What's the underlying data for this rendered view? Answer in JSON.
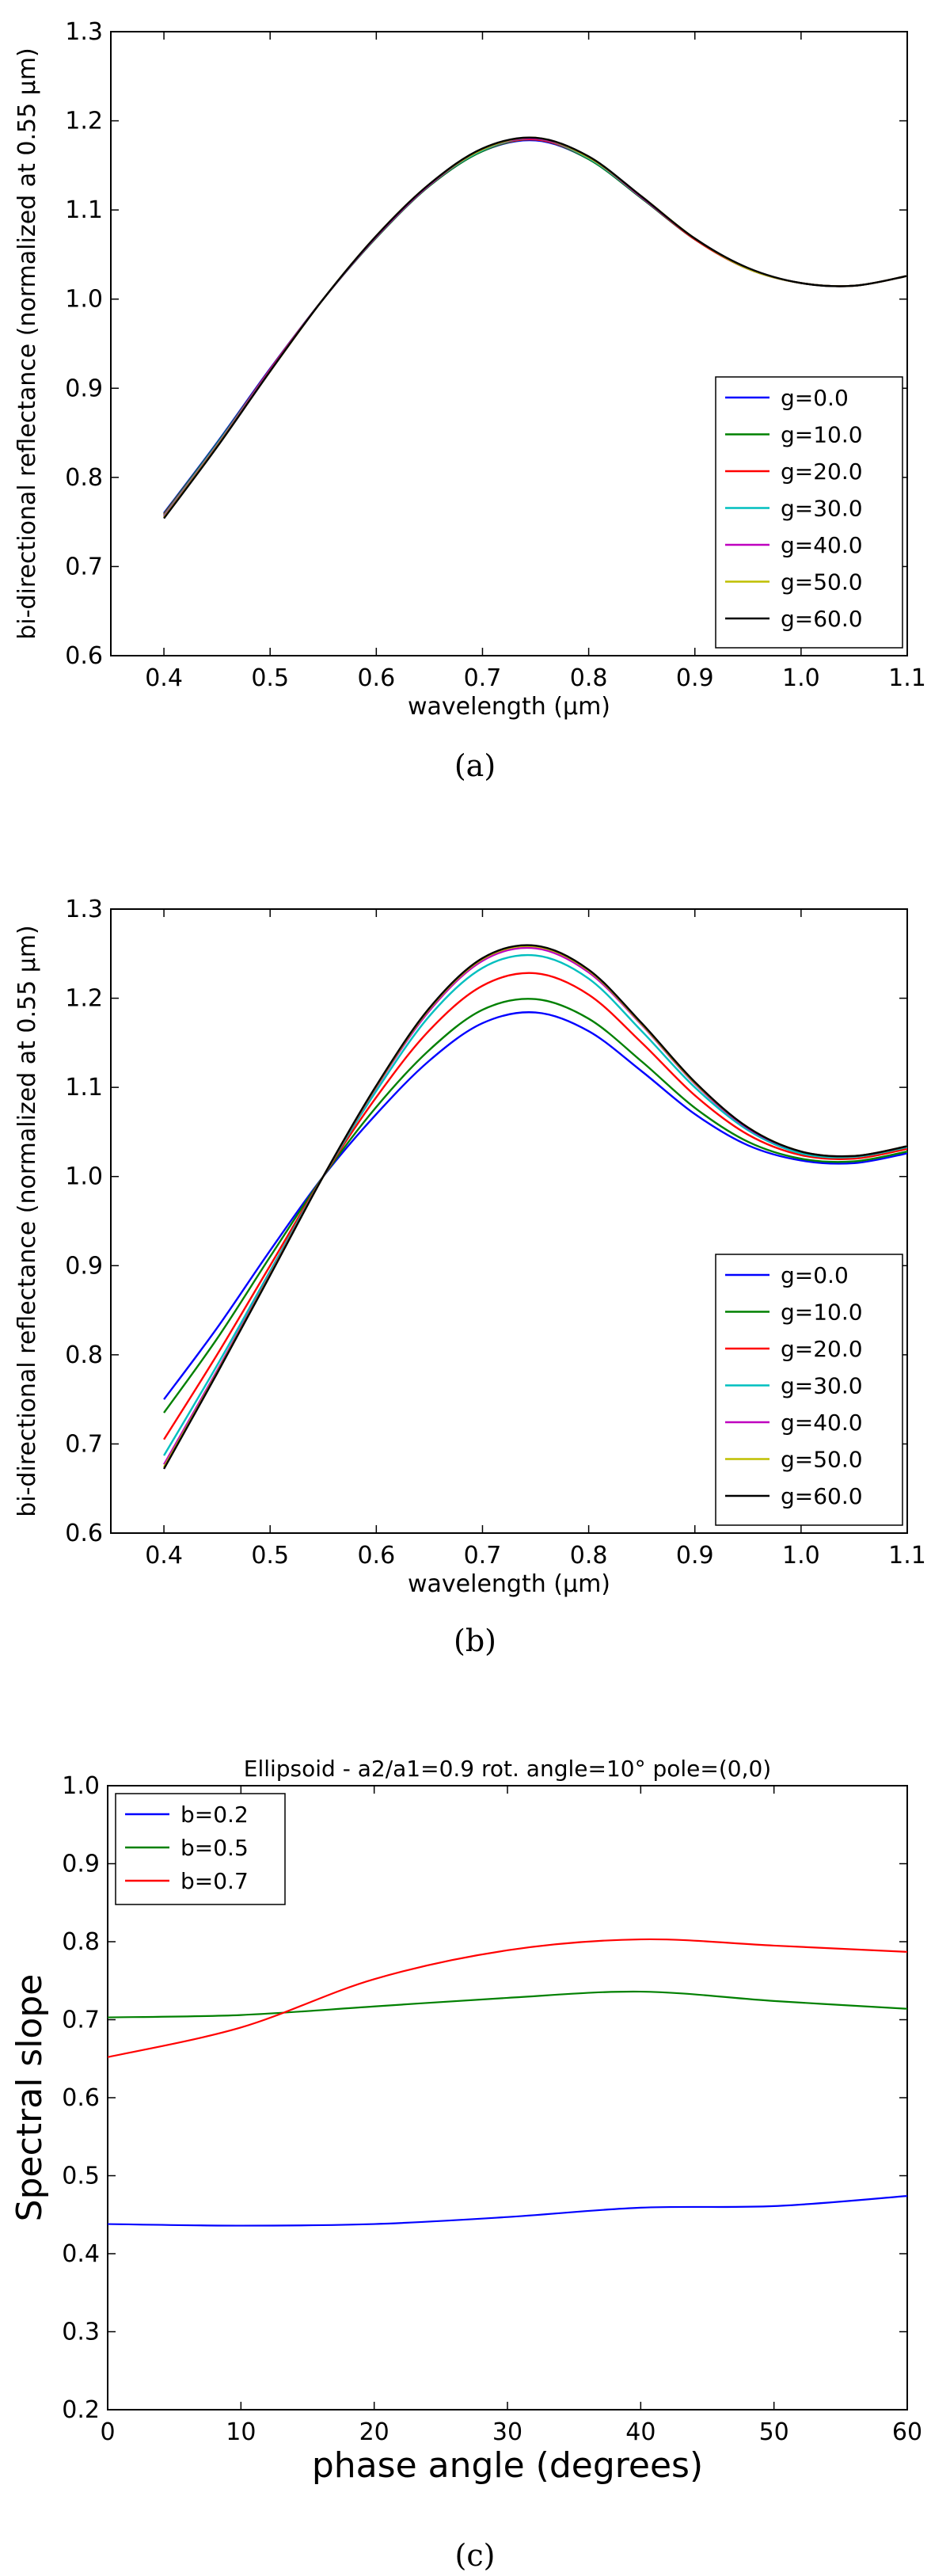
{
  "chart_data": [
    {
      "type": "line",
      "caption": "(a)",
      "xlabel": "wavelength (μm)",
      "ylabel": "bi-directional reflectance (normalized at 0.55 μm)",
      "xlim": [
        0.35,
        1.1
      ],
      "ylim": [
        0.6,
        1.3
      ],
      "xticks": [
        "0.4",
        "0.5",
        "0.6",
        "0.7",
        "0.8",
        "0.9",
        "1.0",
        "1.1"
      ],
      "yticks": [
        "0.6",
        "0.7",
        "0.8",
        "0.9",
        "1.0",
        "1.1",
        "1.2",
        "1.3"
      ],
      "legend_position": "lower-right",
      "x": [
        0.4,
        0.45,
        0.5,
        0.55,
        0.6,
        0.65,
        0.7,
        0.75,
        0.8,
        0.85,
        0.9,
        0.95,
        1.0,
        1.05,
        1.1
      ],
      "series": [
        {
          "name": "g=0.0",
          "color": "#0000ff",
          "values": [
            0.76,
            0.839,
            0.922,
            1.0,
            1.069,
            1.127,
            1.166,
            1.178,
            1.157,
            1.113,
            1.067,
            1.034,
            1.018,
            1.015,
            1.026
          ]
        },
        {
          "name": "g=10.0",
          "color": "#008000",
          "values": [
            0.759,
            0.838,
            0.921,
            1.0,
            1.069,
            1.127,
            1.166,
            1.179,
            1.157,
            1.113,
            1.067,
            1.034,
            1.018,
            1.015,
            1.026
          ]
        },
        {
          "name": "g=20.0",
          "color": "#ff0000",
          "values": [
            0.758,
            0.837,
            0.921,
            1.0,
            1.07,
            1.128,
            1.167,
            1.179,
            1.158,
            1.114,
            1.067,
            1.034,
            1.018,
            1.015,
            1.026
          ]
        },
        {
          "name": "g=30.0",
          "color": "#00bfbf",
          "values": [
            0.757,
            0.837,
            0.92,
            1.0,
            1.07,
            1.128,
            1.167,
            1.18,
            1.158,
            1.114,
            1.068,
            1.034,
            1.018,
            1.015,
            1.026
          ]
        },
        {
          "name": "g=40.0",
          "color": "#bf00bf",
          "values": [
            0.756,
            0.836,
            0.92,
            1.0,
            1.07,
            1.128,
            1.168,
            1.18,
            1.159,
            1.114,
            1.068,
            1.034,
            1.018,
            1.015,
            1.026
          ]
        },
        {
          "name": "g=50.0",
          "color": "#bfbf00",
          "values": [
            0.755,
            0.835,
            0.919,
            1.0,
            1.071,
            1.129,
            1.168,
            1.181,
            1.159,
            1.115,
            1.068,
            1.034,
            1.018,
            1.015,
            1.026
          ]
        },
        {
          "name": "g=60.0",
          "color": "#000000",
          "values": [
            0.754,
            0.834,
            0.919,
            1.0,
            1.071,
            1.129,
            1.169,
            1.181,
            1.16,
            1.115,
            1.068,
            1.035,
            1.018,
            1.015,
            1.026
          ]
        }
      ]
    },
    {
      "type": "line",
      "caption": "(b)",
      "xlabel": "wavelength (μm)",
      "ylabel": "bi-directional reflectance (normalized at 0.55 μm)",
      "xlim": [
        0.35,
        1.1
      ],
      "ylim": [
        0.6,
        1.3
      ],
      "xticks": [
        "0.4",
        "0.5",
        "0.6",
        "0.7",
        "0.8",
        "0.9",
        "1.0",
        "1.1"
      ],
      "yticks": [
        "0.6",
        "0.7",
        "0.8",
        "0.9",
        "1.0",
        "1.1",
        "1.2",
        "1.3"
      ],
      "legend_position": "lower-right",
      "x": [
        0.4,
        0.45,
        0.5,
        0.55,
        0.6,
        0.65,
        0.7,
        0.75,
        0.8,
        0.85,
        0.9,
        0.95,
        1.0,
        1.05,
        1.1
      ],
      "series": [
        {
          "name": "g=0.0",
          "color": "#0000ff",
          "values": [
            0.75,
            0.83,
            0.917,
            1.0,
            1.07,
            1.13,
            1.172,
            1.184,
            1.163,
            1.118,
            1.07,
            1.035,
            1.018,
            1.015,
            1.026
          ]
        },
        {
          "name": "g=10.0",
          "color": "#008000",
          "values": [
            0.735,
            0.818,
            0.91,
            1.0,
            1.078,
            1.142,
            1.187,
            1.199,
            1.177,
            1.129,
            1.077,
            1.039,
            1.02,
            1.017,
            1.028
          ]
        },
        {
          "name": "g=20.0",
          "color": "#ff0000",
          "values": [
            0.705,
            0.8,
            0.9,
            1.0,
            1.089,
            1.164,
            1.214,
            1.228,
            1.204,
            1.15,
            1.091,
            1.047,
            1.024,
            1.02,
            1.031
          ]
        },
        {
          "name": "g=30.0",
          "color": "#00bfbf",
          "values": [
            0.687,
            0.788,
            0.894,
            1.0,
            1.096,
            1.18,
            1.234,
            1.248,
            1.222,
            1.163,
            1.1,
            1.052,
            1.026,
            1.022,
            1.033
          ]
        },
        {
          "name": "g=40.0",
          "color": "#bf00bf",
          "values": [
            0.677,
            0.782,
            0.891,
            1.0,
            1.1,
            1.186,
            1.242,
            1.256,
            1.229,
            1.17,
            1.104,
            1.054,
            1.028,
            1.023,
            1.034
          ]
        },
        {
          "name": "g=50.0",
          "color": "#bfbf00",
          "values": [
            0.674,
            0.78,
            0.89,
            1.0,
            1.101,
            1.188,
            1.244,
            1.258,
            1.231,
            1.171,
            1.105,
            1.055,
            1.028,
            1.023,
            1.034
          ]
        },
        {
          "name": "g=60.0",
          "color": "#000000",
          "values": [
            0.672,
            0.779,
            0.889,
            1.0,
            1.102,
            1.189,
            1.245,
            1.259,
            1.232,
            1.172,
            1.106,
            1.055,
            1.028,
            1.023,
            1.034
          ]
        }
      ]
    },
    {
      "type": "line",
      "caption": "(c)",
      "title": "Ellipsoid -  a2/a1=0.9  rot. angle=10°   pole=(0,0)",
      "xlabel": "phase angle (degrees)",
      "ylabel": "Spectral slope",
      "xlim": [
        0,
        60
      ],
      "ylim": [
        0.2,
        1.0
      ],
      "xticks": [
        "0",
        "10",
        "20",
        "30",
        "40",
        "50",
        "60"
      ],
      "yticks": [
        "0.2",
        "0.3",
        "0.4",
        "0.5",
        "0.6",
        "0.7",
        "0.8",
        "0.9",
        "1.0"
      ],
      "legend_position": "upper-left",
      "x": [
        0,
        10,
        20,
        30,
        40,
        50,
        60
      ],
      "series": [
        {
          "name": "b=0.2",
          "color": "#0000ff",
          "values": [
            0.438,
            0.436,
            0.438,
            0.447,
            0.459,
            0.461,
            0.474
          ]
        },
        {
          "name": "b=0.5",
          "color": "#008000",
          "values": [
            0.703,
            0.706,
            0.717,
            0.728,
            0.736,
            0.724,
            0.714
          ]
        },
        {
          "name": "b=0.7",
          "color": "#ff0000",
          "values": [
            0.652,
            0.69,
            0.752,
            0.789,
            0.803,
            0.795,
            0.787
          ]
        }
      ]
    }
  ]
}
